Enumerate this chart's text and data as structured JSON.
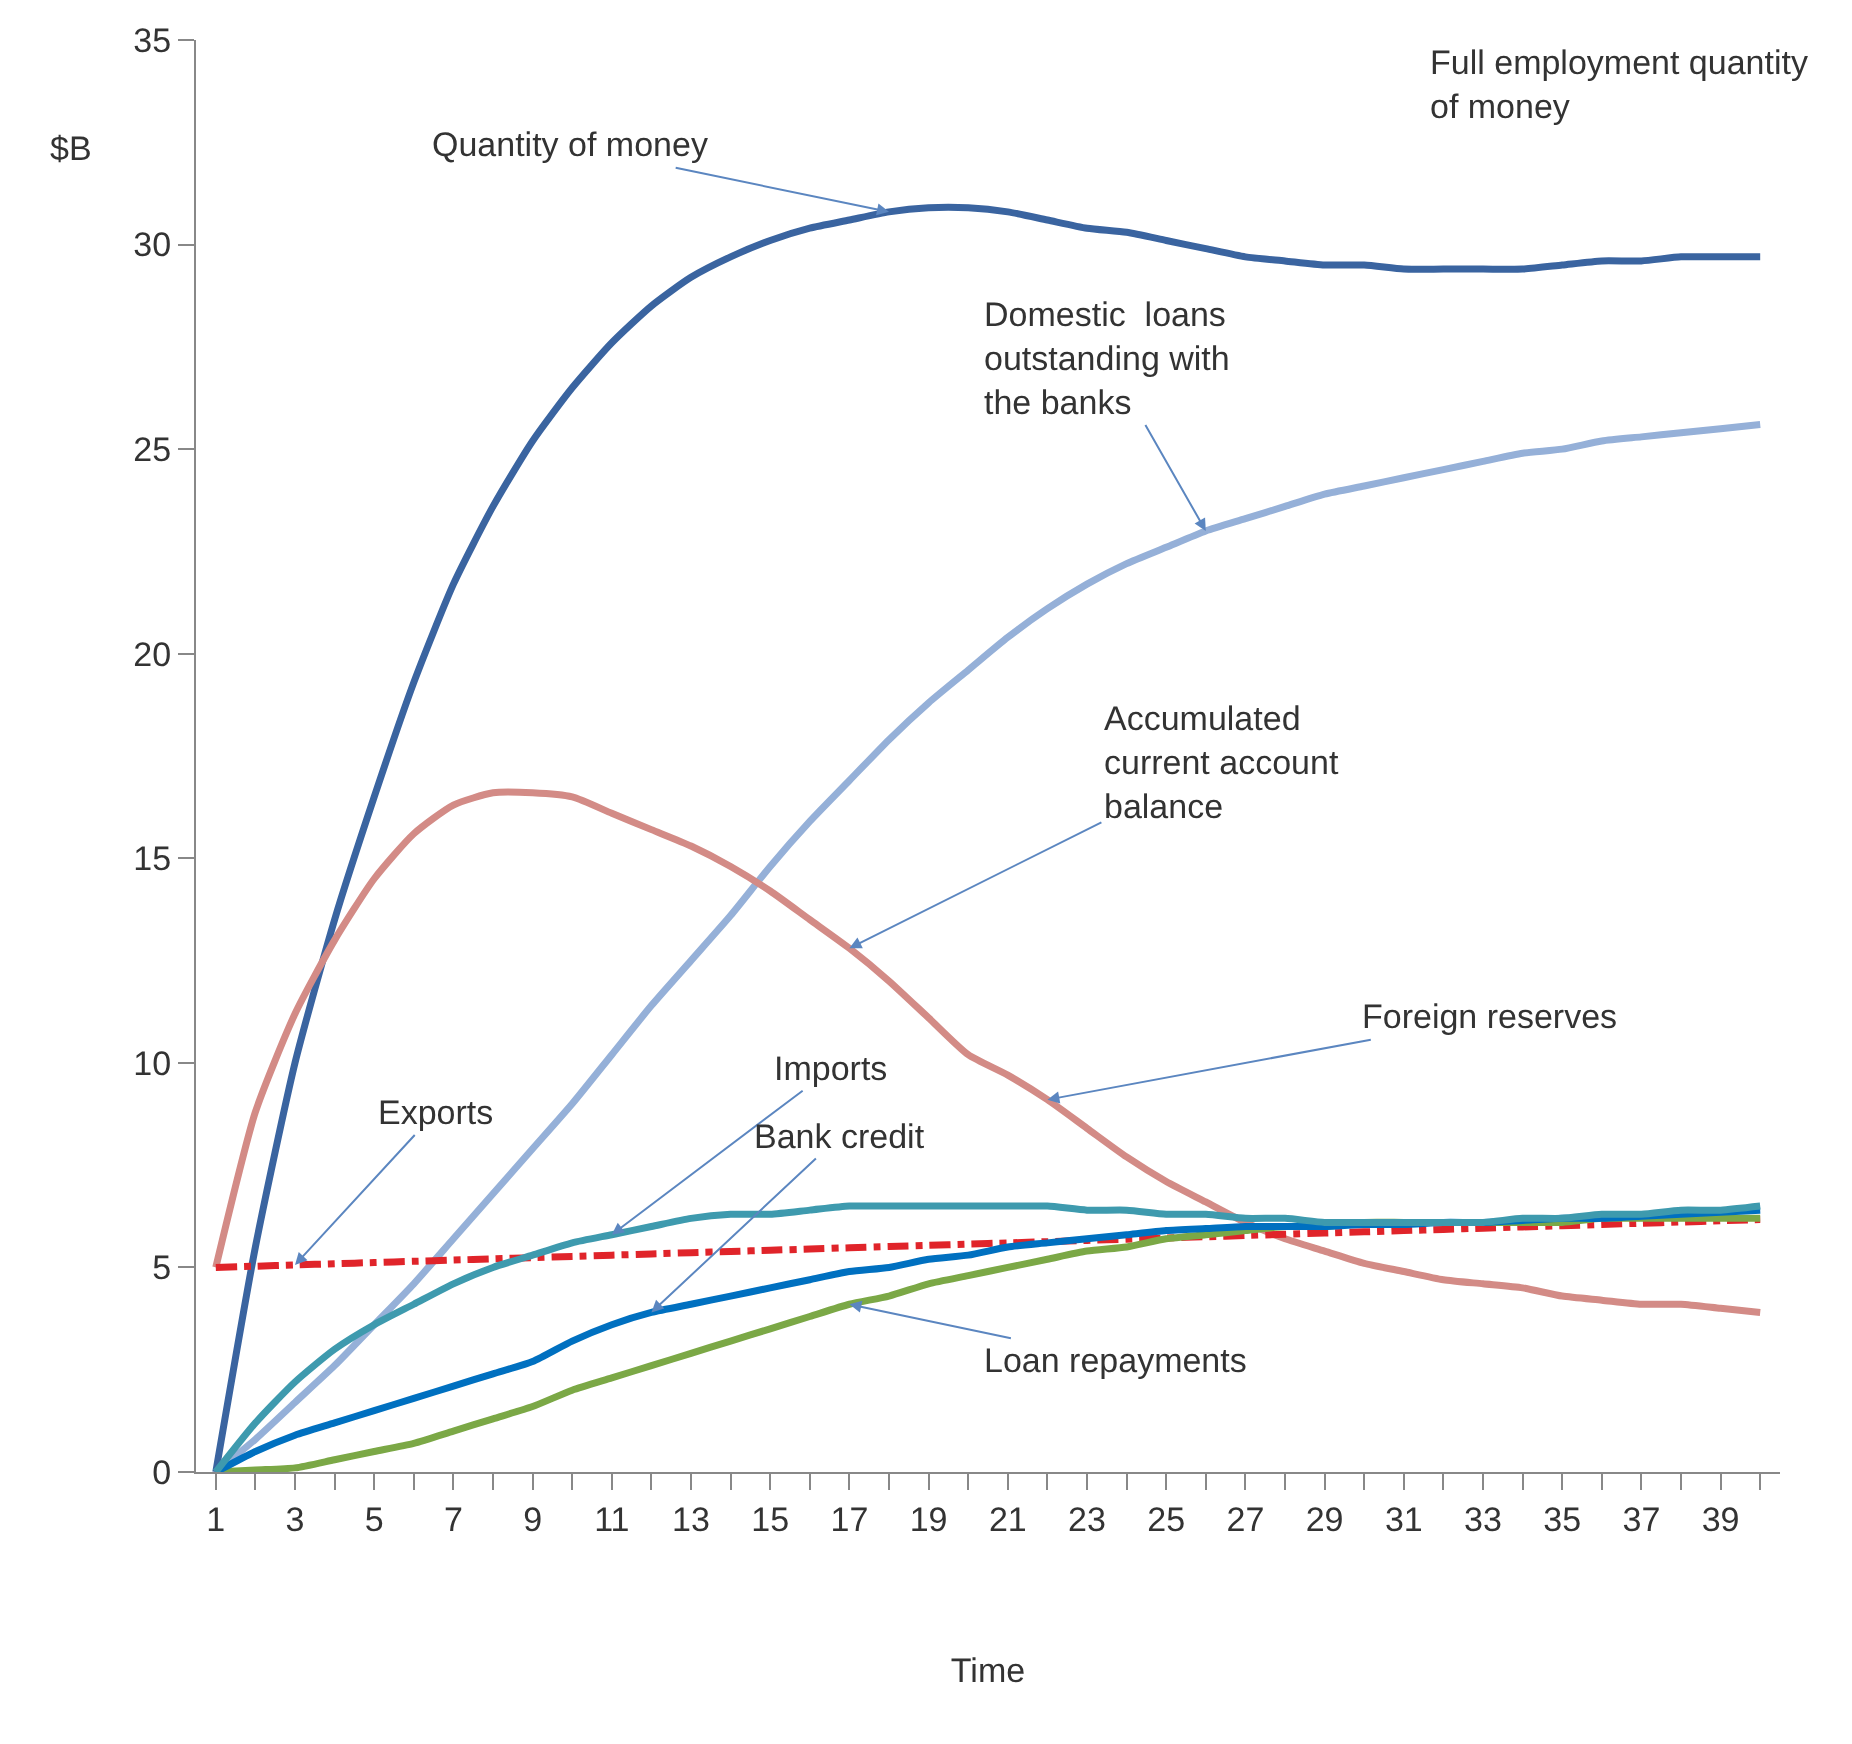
{
  "chart_data": {
    "type": "line",
    "xlabel": "Time",
    "ylabel": "$B",
    "marker": "none",
    "x": [
      1,
      2,
      3,
      4,
      5,
      6,
      7,
      8,
      9,
      10,
      11,
      12,
      13,
      14,
      15,
      16,
      17,
      18,
      19,
      20,
      21,
      22,
      23,
      24,
      25,
      26,
      27,
      28,
      29,
      30,
      31,
      32,
      33,
      34,
      35,
      36,
      37,
      38,
      39,
      40
    ],
    "xlim": [
      0.5,
      40.5
    ],
    "xticks": [
      1,
      3,
      5,
      7,
      9,
      11,
      13,
      15,
      17,
      19,
      21,
      23,
      25,
      27,
      29,
      31,
      33,
      35,
      37,
      39
    ],
    "ylim": [
      0,
      35
    ],
    "yticks": [
      0,
      5,
      10,
      15,
      20,
      25,
      30,
      35
    ],
    "series": [
      {
        "color": "#3a64a0",
        "line_style": "solid",
        "values": [
          0,
          5.5,
          10,
          13.5,
          16.5,
          19.3,
          21.7,
          23.6,
          25.2,
          26.5,
          27.6,
          28.5,
          29.2,
          29.7,
          30.1,
          30.4,
          30.6,
          30.8,
          30.9,
          30.9,
          30.8,
          30.6,
          30.4,
          30.3,
          30.1,
          29.9,
          29.7,
          29.6,
          29.5,
          29.5,
          29.4,
          29.4,
          29.4,
          29.4,
          29.5,
          29.6,
          29.6,
          29.7,
          29.7,
          29.7
        ]
      },
      {
        "color": "#95b0d8",
        "line_style": "solid",
        "values": [
          0,
          0.8,
          1.7,
          2.6,
          3.6,
          4.6,
          5.7,
          6.8,
          7.9,
          9.0,
          10.2,
          11.4,
          12.5,
          13.6,
          14.8,
          15.9,
          16.9,
          17.9,
          18.8,
          19.6,
          20.4,
          21.1,
          21.7,
          22.2,
          22.6,
          23.0,
          23.3,
          23.6,
          23.9,
          24.1,
          24.3,
          24.5,
          24.7,
          24.9,
          25.0,
          25.2,
          25.3,
          25.4,
          25.5,
          25.6
        ]
      },
      {
        "color": "#d38b86",
        "line_style": "solid",
        "values": [
          5,
          8.8,
          11.2,
          13,
          14.5,
          15.6,
          16.3,
          16.6,
          16.6,
          16.5,
          16.1,
          15.7,
          15.3,
          14.8,
          14.2,
          13.5,
          12.8,
          12.0,
          11.1,
          10.2,
          9.7,
          9.1,
          8.4,
          7.7,
          7.1,
          6.6,
          6.1,
          5.7,
          5.4,
          5.1,
          4.9,
          4.7,
          4.6,
          4.5,
          4.3,
          4.2,
          4.1,
          4.1,
          4.0,
          3.9
        ]
      },
      {
        "color": "#e0242a",
        "line_style": "dashed",
        "values": [
          5.0,
          5.03,
          5.06,
          5.09,
          5.12,
          5.15,
          5.18,
          5.21,
          5.24,
          5.27,
          5.3,
          5.33,
          5.36,
          5.39,
          5.42,
          5.45,
          5.48,
          5.51,
          5.54,
          5.57,
          5.6,
          5.63,
          5.66,
          5.69,
          5.72,
          5.75,
          5.78,
          5.81,
          5.84,
          5.87,
          5.9,
          5.93,
          5.96,
          5.99,
          6.02,
          6.05,
          6.08,
          6.11,
          6.14,
          6.17
        ]
      },
      {
        "color": "#7ba846",
        "line_style": "solid",
        "values": [
          0,
          0.05,
          0.1,
          0.3,
          0.5,
          0.7,
          1.0,
          1.3,
          1.6,
          2.0,
          2.3,
          2.6,
          2.9,
          3.2,
          3.5,
          3.8,
          4.1,
          4.3,
          4.6,
          4.8,
          5.0,
          5.2,
          5.4,
          5.5,
          5.7,
          5.8,
          5.9,
          6.0,
          6.0,
          6.1,
          6.1,
          6.1,
          6.1,
          6.1,
          6.1,
          6.2,
          6.2,
          6.2,
          6.2,
          6.2
        ]
      },
      {
        "color": "#0070c0",
        "line_style": "solid",
        "values": [
          0,
          0.5,
          0.9,
          1.2,
          1.5,
          1.8,
          2.1,
          2.4,
          2.7,
          3.2,
          3.6,
          3.9,
          4.1,
          4.3,
          4.5,
          4.7,
          4.9,
          5.0,
          5.2,
          5.3,
          5.5,
          5.6,
          5.7,
          5.8,
          5.9,
          5.95,
          6.0,
          6.0,
          6.0,
          6.05,
          6.05,
          6.1,
          6.1,
          6.15,
          6.2,
          6.2,
          6.25,
          6.3,
          6.35,
          6.4
        ]
      },
      {
        "color": "#3e9aae",
        "line_style": "solid",
        "values": [
          0,
          1.2,
          2.2,
          3.0,
          3.6,
          4.1,
          4.6,
          5.0,
          5.3,
          5.6,
          5.8,
          6.0,
          6.2,
          6.3,
          6.3,
          6.4,
          6.5,
          6.5,
          6.5,
          6.5,
          6.5,
          6.5,
          6.4,
          6.4,
          6.3,
          6.3,
          6.2,
          6.2,
          6.1,
          6.1,
          6.1,
          6.1,
          6.1,
          6.2,
          6.2,
          6.3,
          6.3,
          6.4,
          6.4,
          6.5
        ]
      }
    ],
    "annotations": [
      {
        "text": "Quantity of money",
        "x": 18,
        "y": 30.8
      },
      {
        "text": "Domestic  loans\noutstanding with\nthe banks",
        "x": 26,
        "y": 23.0
      },
      {
        "text": "Accumulated\ncurrent account\nbalance",
        "x": 17,
        "y": 12.8
      },
      {
        "text": "Foreign reserves",
        "x": 22,
        "y": 9.1
      },
      {
        "text": "Imports",
        "x": 11,
        "y": 5.8
      },
      {
        "text": "Bank credit",
        "x": 12,
        "y": 3.9
      },
      {
        "text": "Exports",
        "x": 3,
        "y": 5.06
      },
      {
        "text": "Loan repayments",
        "x": 17,
        "y": 4.1
      },
      "Full employment quantity\nof money"
    ]
  }
}
